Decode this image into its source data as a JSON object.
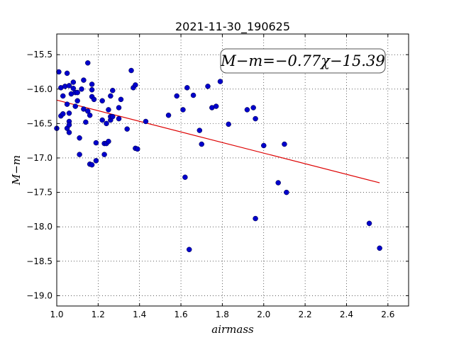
{
  "chart_data": {
    "type": "scatter",
    "title": "2021-11-30_190625",
    "xlabel": "airmass",
    "ylabel": "M−m",
    "xlim": [
      1.0,
      2.7
    ],
    "ylim": [
      -19.15,
      -15.2
    ],
    "y_inverted": true,
    "grid": true,
    "xticks": [
      1.0,
      1.2,
      1.4,
      1.6,
      1.8,
      2.0,
      2.2,
      2.4,
      2.6
    ],
    "xtick_labels": [
      "1.0",
      "1.2",
      "1.4",
      "1.6",
      "1.8",
      "2.0",
      "2.2",
      "2.4",
      "2.6"
    ],
    "yticks": [
      -15.5,
      -16.0,
      -16.5,
      -17.0,
      -17.5,
      -18.0,
      -18.5,
      -19.0
    ],
    "ytick_labels": [
      "−15.5",
      "−16.0",
      "−16.5",
      "−17.0",
      "−17.5",
      "−18.0",
      "−18.5",
      "−19.0"
    ],
    "annotation": "M−m=−0.77χ−15.39",
    "annotation_placement": "top-right",
    "colors": {
      "points": "#0000cc",
      "fit": "#dd0000"
    },
    "fit_line": {
      "slope": -0.77,
      "intercept": -15.39,
      "x_range": [
        1.0,
        2.56
      ]
    },
    "points": [
      [
        1.0,
        -16.57
      ],
      [
        1.01,
        -15.75
      ],
      [
        1.02,
        -16.39
      ],
      [
        1.02,
        -15.98
      ],
      [
        1.03,
        -16.1
      ],
      [
        1.03,
        -16.36
      ],
      [
        1.04,
        -15.96
      ],
      [
        1.05,
        -15.77
      ],
      [
        1.05,
        -16.22
      ],
      [
        1.05,
        -16.57
      ],
      [
        1.06,
        -16.47
      ],
      [
        1.06,
        -16.35
      ],
      [
        1.06,
        -16.52
      ],
      [
        1.06,
        -16.63
      ],
      [
        1.06,
        -15.95
      ],
      [
        1.07,
        -16.07
      ],
      [
        1.08,
        -15.9
      ],
      [
        1.08,
        -15.99
      ],
      [
        1.09,
        -16.05
      ],
      [
        1.09,
        -16.25
      ],
      [
        1.1,
        -16.05
      ],
      [
        1.1,
        -16.17
      ],
      [
        1.11,
        -16.71
      ],
      [
        1.11,
        -16.95
      ],
      [
        1.12,
        -16.0
      ],
      [
        1.13,
        -15.87
      ],
      [
        1.13,
        -16.29
      ],
      [
        1.14,
        -16.48
      ],
      [
        1.15,
        -15.62
      ],
      [
        1.15,
        -16.32
      ],
      [
        1.16,
        -16.38
      ],
      [
        1.16,
        -17.09
      ],
      [
        1.17,
        -17.1
      ],
      [
        1.17,
        -15.93
      ],
      [
        1.17,
        -16.01
      ],
      [
        1.17,
        -16.11
      ],
      [
        1.18,
        -16.15
      ],
      [
        1.19,
        -16.78
      ],
      [
        1.19,
        -17.04
      ],
      [
        1.22,
        -16.17
      ],
      [
        1.22,
        -16.45
      ],
      [
        1.23,
        -16.79
      ],
      [
        1.23,
        -16.95
      ],
      [
        1.24,
        -16.79
      ],
      [
        1.24,
        -16.5
      ],
      [
        1.25,
        -16.3
      ],
      [
        1.25,
        -16.76
      ],
      [
        1.26,
        -16.45
      ],
      [
        1.26,
        -16.4
      ],
      [
        1.26,
        -16.1
      ],
      [
        1.27,
        -16.02
      ],
      [
        1.27,
        -16.4
      ],
      [
        1.3,
        -16.27
      ],
      [
        1.3,
        -16.43
      ],
      [
        1.31,
        -16.15
      ],
      [
        1.34,
        -16.58
      ],
      [
        1.36,
        -15.73
      ],
      [
        1.37,
        -15.98
      ],
      [
        1.38,
        -16.86
      ],
      [
        1.38,
        -15.94
      ],
      [
        1.39,
        -16.87
      ],
      [
        1.43,
        -16.47
      ],
      [
        1.54,
        -16.38
      ],
      [
        1.58,
        -16.1
      ],
      [
        1.61,
        -16.3
      ],
      [
        1.62,
        -17.28
      ],
      [
        1.63,
        -15.98
      ],
      [
        1.64,
        -18.33
      ],
      [
        1.66,
        -16.09
      ],
      [
        1.69,
        -16.6
      ],
      [
        1.7,
        -16.8
      ],
      [
        1.73,
        -15.96
      ],
      [
        1.75,
        -16.27
      ],
      [
        1.77,
        -16.25
      ],
      [
        1.79,
        -15.89
      ],
      [
        1.83,
        -16.51
      ],
      [
        1.92,
        -16.3
      ],
      [
        1.95,
        -16.27
      ],
      [
        1.96,
        -16.43
      ],
      [
        1.96,
        -17.88
      ],
      [
        2.0,
        -16.82
      ],
      [
        2.07,
        -17.36
      ],
      [
        2.1,
        -16.8
      ],
      [
        2.11,
        -17.5
      ],
      [
        2.51,
        -17.95
      ],
      [
        2.56,
        -18.31
      ]
    ]
  }
}
